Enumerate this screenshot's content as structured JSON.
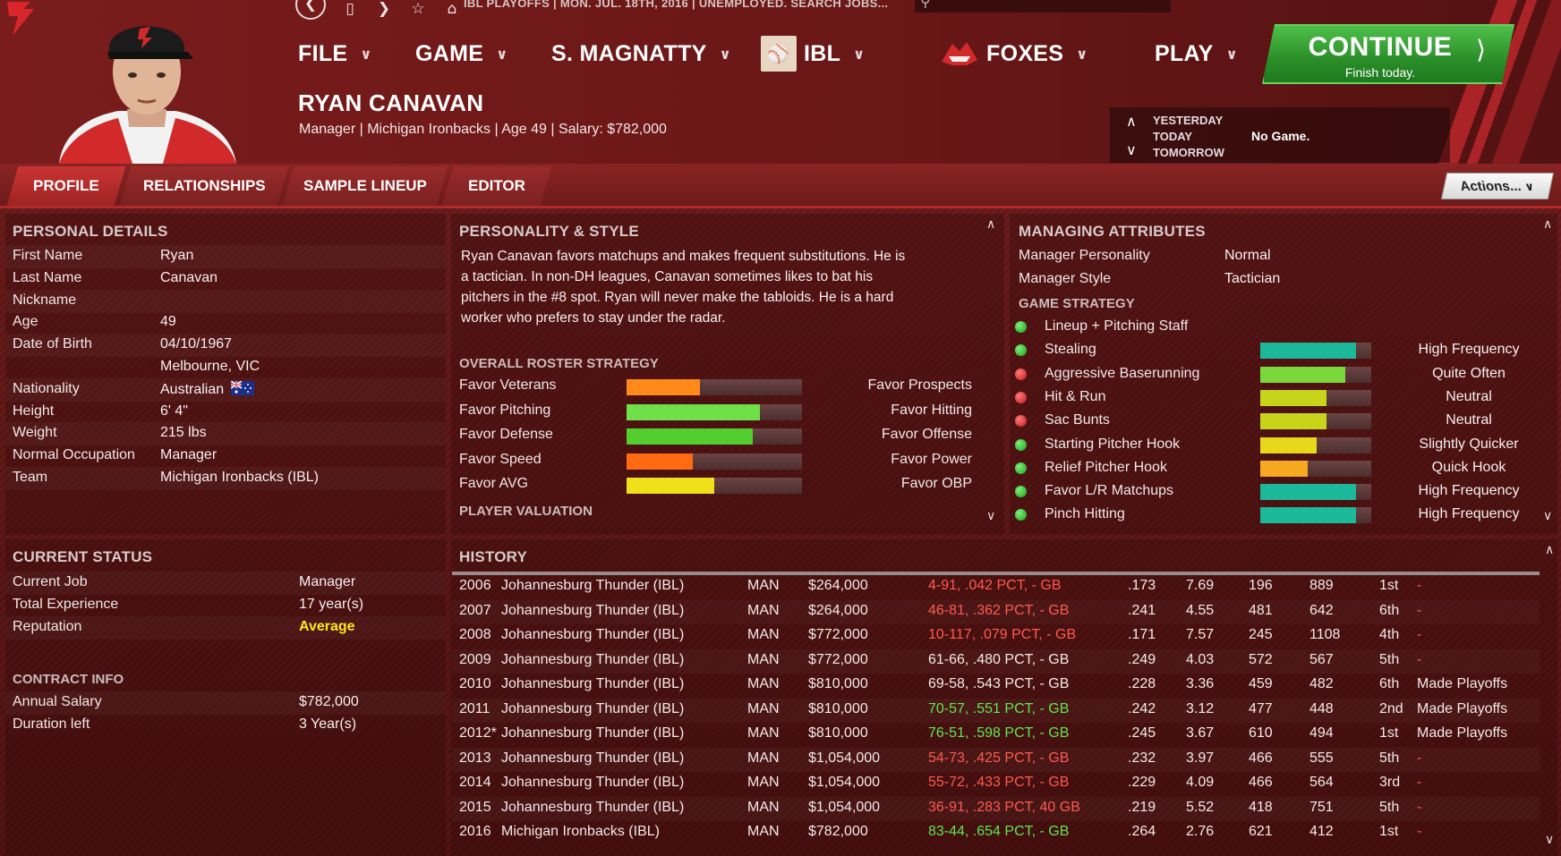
{
  "header": {
    "status_line": "IBL PLAYOFFS  |  MON. JUL. 18TH, 2016  |  UNEMPLOYED. SEARCH JOBS...",
    "menus": [
      {
        "label": "FILE"
      },
      {
        "label": "GAME"
      },
      {
        "label": "S. MAGNATTY"
      },
      {
        "label": "IBL"
      },
      {
        "label": "FOXES"
      },
      {
        "label": "PLAY"
      }
    ],
    "continue_label": "CONTINUE",
    "continue_sub": "Finish today.",
    "manager_name": "RYAN CANAVAN",
    "manager_info": "Manager | Michigan Ironbacks  |  Age 49  |  Salary: $782,000",
    "day_nav": {
      "yesterday": "YESTERDAY",
      "today": "TODAY",
      "tomorrow": "TOMORROW",
      "game": "No Game."
    }
  },
  "tabs": [
    {
      "label": "PROFILE",
      "active": true
    },
    {
      "label": "RELATIONSHIPS",
      "active": false
    },
    {
      "label": "SAMPLE LINEUP",
      "active": false
    },
    {
      "label": "EDITOR",
      "active": false
    }
  ],
  "actions_label": "Actions...",
  "personal": {
    "title": "PERSONAL DETAILS",
    "rows": [
      {
        "label": "First Name",
        "value": "Ryan"
      },
      {
        "label": "Last Name",
        "value": "Canavan"
      },
      {
        "label": "Nickname",
        "value": ""
      },
      {
        "label": "Age",
        "value": "49"
      },
      {
        "label": "Date of Birth",
        "value": "04/10/1967"
      },
      {
        "label": "",
        "value": "Melbourne, VIC"
      },
      {
        "label": "Nationality",
        "value": "Australian"
      },
      {
        "label": "Height",
        "value": "6' 4\""
      },
      {
        "label": "Weight",
        "value": "215 lbs"
      },
      {
        "label": "Normal Occupation",
        "value": "Manager"
      },
      {
        "label": "Team",
        "value": "Michigan Ironbacks (IBL)"
      }
    ]
  },
  "status": {
    "title": "CURRENT STATUS",
    "rows": [
      {
        "label": "Current Job",
        "value": "Manager"
      },
      {
        "label": "Total Experience",
        "value": "17 year(s)"
      },
      {
        "label": "Reputation",
        "value": "Average"
      }
    ],
    "contract_title": "CONTRACT INFO",
    "contract_rows": [
      {
        "label": "Annual Salary",
        "value": "$782,000"
      },
      {
        "label": "Duration left",
        "value": "3 Year(s)"
      }
    ]
  },
  "personality": {
    "title": "PERSONALITY & STYLE",
    "description_lines": [
      "Ryan Canavan favors matchups and makes frequent substitutions. He is",
      "a tactician. In non-DH leagues, Canavan sometimes likes to bat his",
      "pitchers in the #8 spot. Ryan will never make the tabloids. He is a hard",
      "worker who prefers to stay under the radar."
    ],
    "roster_title": "OVERALL ROSTER STRATEGY",
    "roster": [
      {
        "left": "Favor Veterans",
        "right": "Favor Prospects",
        "level": 0.42,
        "color": "#ff8a1a"
      },
      {
        "left": "Favor Pitching",
        "right": "Favor Hitting",
        "level": 0.76,
        "color": "#6fe04a"
      },
      {
        "left": "Favor Defense",
        "right": "Favor Offense",
        "level": 0.72,
        "color": "#52cf2e"
      },
      {
        "left": "Favor Speed",
        "right": "Favor Power",
        "level": 0.38,
        "color": "#ff6a12"
      },
      {
        "left": "Favor AVG",
        "right": "Favor OBP",
        "level": 0.5,
        "color": "#f0e01a"
      }
    ],
    "valuation_title": "PLAYER VALUATION"
  },
  "managing": {
    "title": "MANAGING ATTRIBUTES",
    "rows": [
      {
        "label": "Manager Personality",
        "value": "Normal"
      },
      {
        "label": "Manager Style",
        "value": "Tactician"
      }
    ],
    "strategy_title": "GAME STRATEGY",
    "strategy": [
      {
        "label": "Lineup + Pitching Staff",
        "status": "green",
        "level": null,
        "color": "",
        "value": ""
      },
      {
        "label": "Stealing",
        "status": "green",
        "level": 0.86,
        "color": "#1bb89a",
        "value": "High Frequency"
      },
      {
        "label": "Aggressive Baserunning",
        "status": "red",
        "level": 0.77,
        "color": "#7ad83a",
        "value": "Quite Often"
      },
      {
        "label": "Hit & Run",
        "status": "red",
        "level": 0.6,
        "color": "#c8d41a",
        "value": "Neutral"
      },
      {
        "label": "Sac Bunts",
        "status": "red",
        "level": 0.6,
        "color": "#c8d41a",
        "value": "Neutral"
      },
      {
        "label": "Starting Pitcher Hook",
        "status": "green",
        "level": 0.51,
        "color": "#e8d81a",
        "value": "Slightly Quicker"
      },
      {
        "label": "Relief Pitcher Hook",
        "status": "green",
        "level": 0.43,
        "color": "#f5a820",
        "value": "Quick Hook"
      },
      {
        "label": "Favor L/R Matchups",
        "status": "green",
        "level": 0.86,
        "color": "#1bb89a",
        "value": "High Frequency"
      },
      {
        "label": "Pinch Hitting",
        "status": "green",
        "level": 0.86,
        "color": "#1bb89a",
        "value": "High Frequency"
      }
    ]
  },
  "history": {
    "title": "HISTORY",
    "rows": [
      {
        "year": "2006",
        "team": "Johannesburg Thunder (IBL)",
        "pos": "MAN",
        "salary": "$264,000",
        "record": "4-91, .042 PCT, - GB",
        "rec_color": "red",
        "a": ".173",
        "b": "7.69",
        "c": "196",
        "d": "889",
        "place": "1st",
        "result": "-"
      },
      {
        "year": "2007",
        "team": "Johannesburg Thunder (IBL)",
        "pos": "MAN",
        "salary": "$264,000",
        "record": "46-81, .362 PCT, - GB",
        "rec_color": "red",
        "a": ".241",
        "b": "4.55",
        "c": "481",
        "d": "642",
        "place": "6th",
        "result": "-"
      },
      {
        "year": "2008",
        "team": "Johannesburg Thunder (IBL)",
        "pos": "MAN",
        "salary": "$772,000",
        "record": "10-117, .079 PCT, - GB",
        "rec_color": "red",
        "a": ".171",
        "b": "7.57",
        "c": "245",
        "d": "1108",
        "place": "4th",
        "result": "-"
      },
      {
        "year": "2009",
        "team": "Johannesburg Thunder (IBL)",
        "pos": "MAN",
        "salary": "$772,000",
        "record": "61-66, .480 PCT, - GB",
        "rec_color": "white",
        "a": ".249",
        "b": "4.03",
        "c": "572",
        "d": "567",
        "place": "5th",
        "result": "-"
      },
      {
        "year": "2010",
        "team": "Johannesburg Thunder (IBL)",
        "pos": "MAN",
        "salary": "$810,000",
        "record": "69-58, .543 PCT, - GB",
        "rec_color": "white",
        "a": ".228",
        "b": "3.36",
        "c": "459",
        "d": "482",
        "place": "6th",
        "result": "Made Playoffs"
      },
      {
        "year": "2011",
        "team": "Johannesburg Thunder (IBL)",
        "pos": "MAN",
        "salary": "$810,000",
        "record": "70-57, .551 PCT, - GB",
        "rec_color": "green",
        "a": ".242",
        "b": "3.12",
        "c": "477",
        "d": "448",
        "place": "2nd",
        "result": "Made Playoffs"
      },
      {
        "year": "2012*",
        "team": "Johannesburg Thunder (IBL)",
        "pos": "MAN",
        "salary": "$810,000",
        "record": "76-51, .598 PCT, - GB",
        "rec_color": "green",
        "a": ".245",
        "b": "3.67",
        "c": "610",
        "d": "494",
        "place": "1st",
        "result": "Made Playoffs"
      },
      {
        "year": "2013",
        "team": "Johannesburg Thunder (IBL)",
        "pos": "MAN",
        "salary": "$1,054,000",
        "record": "54-73, .425 PCT, - GB",
        "rec_color": "red",
        "a": ".232",
        "b": "3.97",
        "c": "466",
        "d": "555",
        "place": "5th",
        "result": "-"
      },
      {
        "year": "2014",
        "team": "Johannesburg Thunder (IBL)",
        "pos": "MAN",
        "salary": "$1,054,000",
        "record": "55-72, .433 PCT, - GB",
        "rec_color": "red",
        "a": ".229",
        "b": "4.09",
        "c": "466",
        "d": "564",
        "place": "3rd",
        "result": "-"
      },
      {
        "year": "2015",
        "team": "Johannesburg Thunder (IBL)",
        "pos": "MAN",
        "salary": "$1,054,000",
        "record": "36-91, .283 PCT, 40 GB",
        "rec_color": "red",
        "a": ".219",
        "b": "5.52",
        "c": "418",
        "d": "751",
        "place": "5th",
        "result": "-"
      },
      {
        "year": "2016",
        "team": "Michigan Ironbacks (IBL)",
        "pos": "MAN",
        "salary": "$782,000",
        "record": "83-44, .654 PCT, - GB",
        "rec_color": "green",
        "a": ".264",
        "b": "2.76",
        "c": "621",
        "d": "412",
        "place": "1st",
        "result": "-"
      }
    ]
  },
  "colors": {
    "accent_red": "#b12b2b",
    "continue_green": "#2a8e28",
    "reputation_yellow": "#ffe81a"
  },
  "icons": [
    "back-icon",
    "document-icon",
    "forward-icon",
    "star-icon",
    "home-icon",
    "search-icon",
    "chevron-down-icon",
    "chevron-up-icon",
    "australia-flag-icon"
  ]
}
